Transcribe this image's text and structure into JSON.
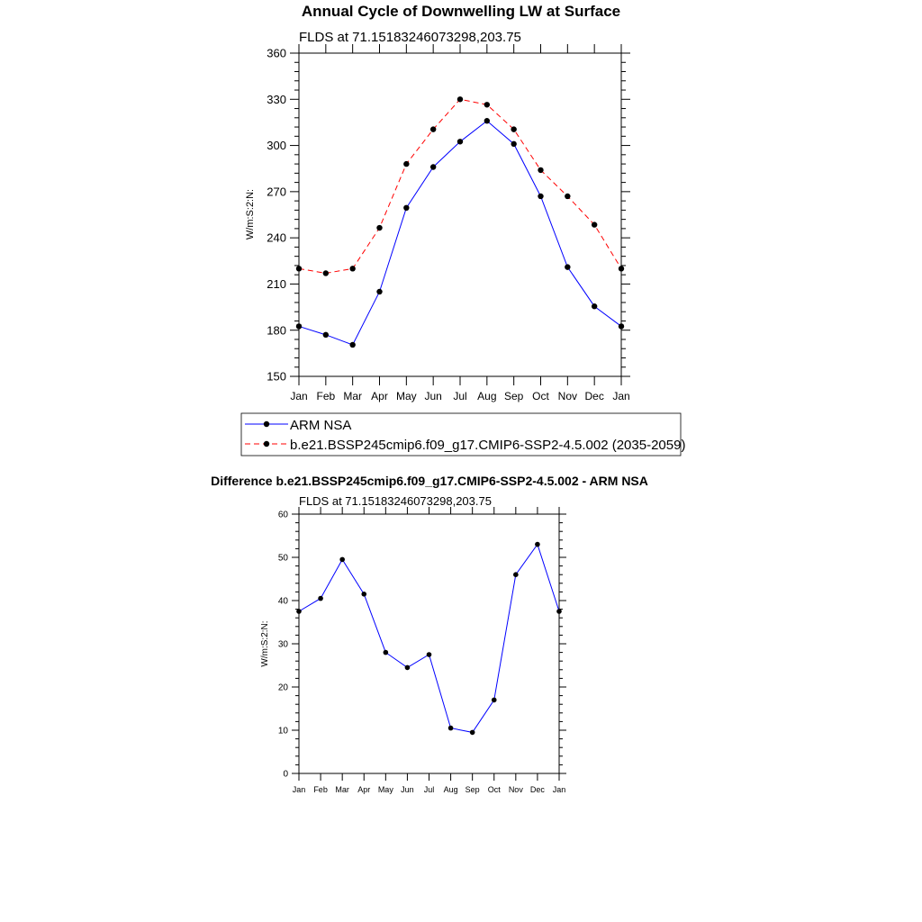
{
  "chart_data": [
    {
      "type": "line",
      "title": "Annual Cycle of Downwelling LW at Surface",
      "subtitle": "FLDS at 71.15183246073298,203.75",
      "xlabel": "",
      "ylabel": "W/m:S:2:N:",
      "ylim": [
        150,
        360
      ],
      "yticks": [
        150,
        180,
        210,
        240,
        270,
        300,
        330,
        360
      ],
      "categories": [
        "Jan",
        "Feb",
        "Mar",
        "Apr",
        "May",
        "Jun",
        "Jul",
        "Aug",
        "Sep",
        "Oct",
        "Nov",
        "Dec",
        "Jan"
      ],
      "series": [
        {
          "name": "ARM NSA",
          "color": "#0000ff",
          "dash": "solid",
          "values": [
            182.5,
            177,
            170.5,
            205,
            259.5,
            286,
            302.5,
            316,
            301,
            267,
            221,
            195.5,
            182.5
          ]
        },
        {
          "name": "b.e21.BSSP245cmip6.f09_g17.CMIP6-SSP2-4.5.002 (2035-2059)",
          "color": "#ff0000",
          "dash": "dashed",
          "values": [
            220,
            217,
            220,
            246.5,
            288,
            310.5,
            330,
            326.5,
            310.5,
            284,
            267,
            248.5,
            220
          ]
        }
      ],
      "grid": false,
      "legend": "below"
    },
    {
      "type": "line",
      "title": "Difference b.e21.BSSP245cmip6.f09_g17.CMIP6-SSP2-4.5.002 - ARM NSA",
      "subtitle": "FLDS at 71.15183246073298,203.75",
      "xlabel": "",
      "ylabel": "W/m:S:2:N:",
      "ylim": [
        0,
        60
      ],
      "yticks": [
        0,
        10,
        20,
        30,
        40,
        50,
        60
      ],
      "categories": [
        "Jan",
        "Feb",
        "Mar",
        "Apr",
        "May",
        "Jun",
        "Jul",
        "Aug",
        "Sep",
        "Oct",
        "Nov",
        "Dec",
        "Jan"
      ],
      "series": [
        {
          "name": "Difference",
          "color": "#0000ff",
          "dash": "solid",
          "values": [
            37.5,
            40.5,
            49.5,
            41.5,
            28,
            24.5,
            27.5,
            10.5,
            9.5,
            17,
            46,
            53,
            37.5
          ]
        }
      ],
      "grid": false,
      "legend": "none"
    }
  ]
}
